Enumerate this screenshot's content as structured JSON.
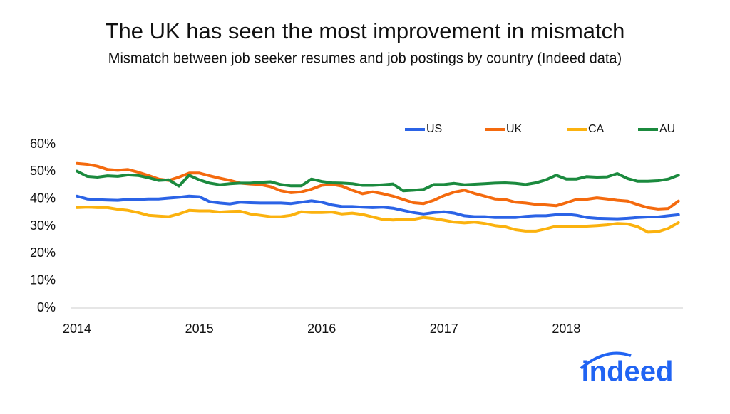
{
  "chart_data": {
    "type": "line",
    "title": "The UK has seen the most improvement in mismatch",
    "subtitle": "Mismatch between job seeker resumes and job postings by country (Indeed data)",
    "categories": [
      "2014",
      null,
      null,
      null,
      null,
      null,
      null,
      null,
      null,
      null,
      null,
      null,
      "2015",
      null,
      null,
      null,
      null,
      null,
      null,
      null,
      null,
      null,
      null,
      null,
      "2016",
      null,
      null,
      null,
      null,
      null,
      null,
      null,
      null,
      null,
      null,
      null,
      "2017",
      null,
      null,
      null,
      null,
      null,
      null,
      null,
      null,
      null,
      null,
      null,
      "2018",
      null,
      null,
      null,
      null,
      null,
      null,
      null,
      null,
      null,
      null,
      null
    ],
    "series": [
      {
        "name": "US",
        "color": "#2b63e6",
        "values": [
          41,
          40,
          39.7,
          39.6,
          39.5,
          39.8,
          39.8,
          40,
          40,
          40.3,
          40.6,
          41,
          40.8,
          39,
          38.5,
          38.2,
          38.8,
          38.6,
          38.5,
          38.5,
          38.5,
          38.3,
          38.8,
          39.3,
          38.8,
          37.8,
          37.2,
          37.2,
          37,
          36.8,
          37,
          36.6,
          35.8,
          35,
          34.5,
          35,
          35.3,
          34.8,
          33.8,
          33.5,
          33.5,
          33.2,
          33.2,
          33.2,
          33.6,
          33.8,
          33.8,
          34.2,
          34.4,
          34,
          33.2,
          32.9,
          32.8,
          32.7,
          32.9,
          33.2,
          33.4,
          33.4,
          33.8,
          34.2
        ]
      },
      {
        "name": "UK",
        "color": "#f46a0e",
        "values": [
          53,
          52.7,
          52,
          50.8,
          50.5,
          50.8,
          49.8,
          48.6,
          47.3,
          46.8,
          48,
          49.5,
          49.5,
          48.5,
          47.6,
          46.8,
          45.8,
          45.5,
          45.3,
          44.5,
          43,
          42.3,
          42.6,
          43.6,
          45,
          45.4,
          44.7,
          43.2,
          41.9,
          42.6,
          41.9,
          41,
          39.8,
          38.6,
          38.3,
          39.5,
          41.2,
          42.5,
          43.2,
          42,
          41,
          40,
          39.8,
          38.8,
          38.5,
          38,
          37.8,
          37.5,
          38.6,
          39.8,
          39.9,
          40.4,
          40,
          39.5,
          39.2,
          37.9,
          36.8,
          36.3,
          36.5,
          39.2
        ]
      },
      {
        "name": "CA",
        "color": "#fbb20f",
        "values": [
          36.8,
          37,
          36.8,
          36.8,
          36.2,
          35.8,
          35,
          34,
          33.7,
          33.5,
          34.5,
          35.8,
          35.6,
          35.6,
          35.2,
          35.4,
          35.5,
          34.5,
          34,
          33.5,
          33.5,
          34,
          35.3,
          35,
          35,
          35.2,
          34.5,
          34.8,
          34.3,
          33.4,
          32.5,
          32.3,
          32.5,
          32.5,
          33.2,
          32.8,
          32.2,
          31.5,
          31.2,
          31.5,
          31,
          30.2,
          29.8,
          28.7,
          28.2,
          28.2,
          29,
          30,
          29.8,
          29.8,
          30,
          30.2,
          30.5,
          31,
          30.8,
          29.8,
          27.8,
          28,
          29.2,
          31.3
        ]
      },
      {
        "name": "AU",
        "color": "#1b8a3e",
        "values": [
          50.2,
          48.3,
          48,
          48.5,
          48.3,
          48.8,
          48.6,
          47.8,
          46.8,
          47,
          44.7,
          48.7,
          47,
          45.8,
          45.2,
          45.6,
          45.8,
          45.8,
          46.1,
          46.3,
          45.3,
          44.8,
          44.8,
          47.3,
          46.4,
          45.9,
          45.8,
          45.6,
          45,
          45,
          45.2,
          45.5,
          43,
          43.2,
          43.5,
          45.3,
          45.3,
          45.7,
          45.2,
          45.4,
          45.6,
          45.8,
          45.9,
          45.7,
          45.3,
          45.9,
          47,
          48.7,
          47.3,
          47.3,
          48.2,
          48,
          48.1,
          49.3,
          47.5,
          46.5,
          46.5,
          46.7,
          47.3,
          48.7
        ]
      }
    ],
    "ylim": [
      0,
      60
    ],
    "yticks": [
      {
        "value": 0,
        "label": "0%"
      },
      {
        "value": 10,
        "label": "10%"
      },
      {
        "value": 20,
        "label": "20%"
      },
      {
        "value": 30,
        "label": "30%"
      },
      {
        "value": 40,
        "label": "40%"
      },
      {
        "value": 50,
        "label": "50%"
      },
      {
        "value": 60,
        "label": "60%"
      }
    ],
    "grid": false,
    "legend": "top-right"
  },
  "logo": "indeed"
}
